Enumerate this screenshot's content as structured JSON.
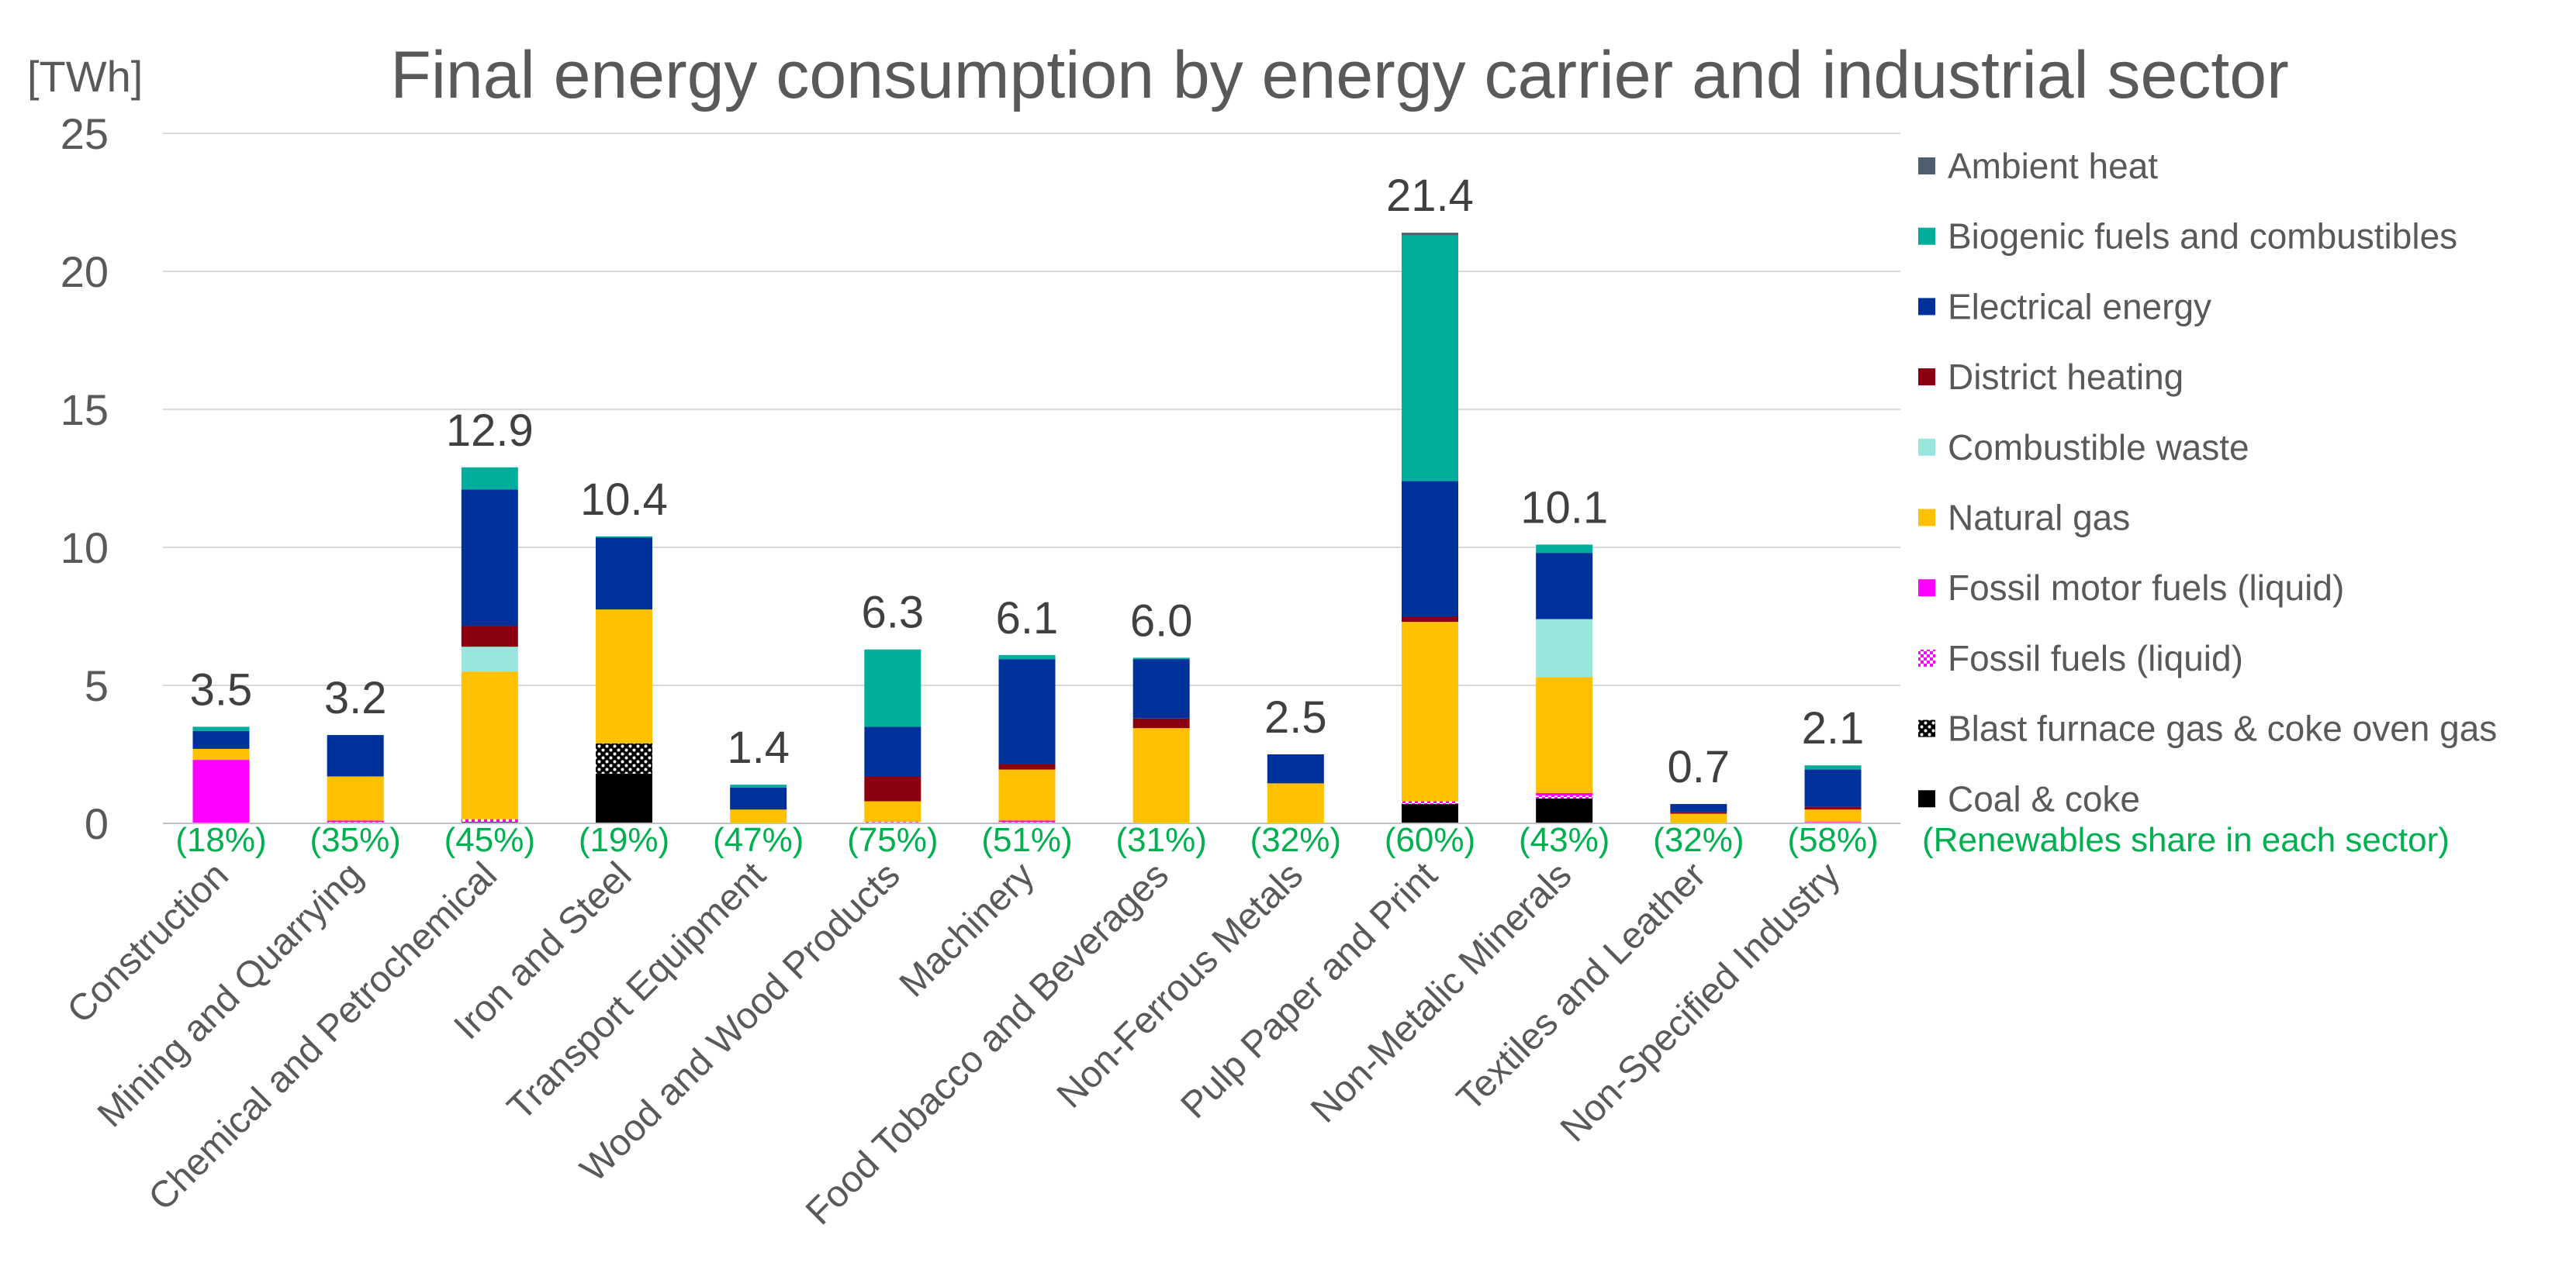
{
  "chart_data": {
    "type": "bar",
    "stacked": true,
    "title": "Final energy consumption by energy carrier and industrial sector",
    "ylabel": "[TWh]",
    "xlabel": "",
    "ylim": [
      0,
      25
    ],
    "yticks": [
      0,
      5,
      10,
      15,
      20,
      25
    ],
    "grid": true,
    "legend_position": "right",
    "categories": [
      "Construction",
      "Mining and Quarrying",
      "Chemical and Petrochemical",
      "Iron and Steel",
      "Transport Equipment",
      "Wood and Wood Products",
      "Machinery",
      "Food Tobacco and Beverages",
      "Non-Ferrous Metals",
      "Pulp Paper and Print",
      "Non-Metalic Minerals",
      "Textiles and Leather",
      "Non-Specified Industry"
    ],
    "totals": [
      "3.5",
      "3.2",
      "12.9",
      "10.4",
      "1.4",
      "6.3",
      "6.1",
      "6.0",
      "2.5",
      "21.4",
      "10.1",
      "0.7",
      "2.1"
    ],
    "renewables_share": [
      "(18%)",
      "(35%)",
      "(45%)",
      "(19%)",
      "(47%)",
      "(75%)",
      "(51%)",
      "(31%)",
      "(32%)",
      "(60%)",
      "(43%)",
      "(32%)",
      "(58%)"
    ],
    "renewables_share_label": "(Renewables share in each sector)",
    "series": [
      {
        "name": "Coal & coke",
        "color": "#000000",
        "pattern": "solid",
        "values": [
          0.0,
          0.0,
          0.05,
          1.8,
          0.0,
          0.0,
          0.0,
          0.0,
          0.0,
          0.7,
          0.9,
          0.0,
          0.0
        ]
      },
      {
        "name": "Blast furnace gas & coke oven gas",
        "color": "#000000",
        "pattern": "dots",
        "values": [
          0.0,
          0.0,
          0.0,
          1.1,
          0.0,
          0.0,
          0.0,
          0.0,
          0.0,
          0.0,
          0.0,
          0.0,
          0.0
        ]
      },
      {
        "name": "Fossil fuels (liquid)",
        "color": "#ff00ff",
        "pattern": "checker",
        "values": [
          0.0,
          0.05,
          0.1,
          0.0,
          0.0,
          0.05,
          0.05,
          0.0,
          0.0,
          0.1,
          0.1,
          0.0,
          0.0
        ]
      },
      {
        "name": "Fossil motor fuels (liquid)",
        "color": "#ff00ff",
        "pattern": "solid",
        "values": [
          2.3,
          0.05,
          0.0,
          0.0,
          0.0,
          0.0,
          0.05,
          0.0,
          0.0,
          0.0,
          0.1,
          0.0,
          0.05
        ]
      },
      {
        "name": "Natural gas",
        "color": "#ffc000",
        "pattern": "solid",
        "values": [
          0.4,
          1.6,
          5.35,
          4.85,
          0.5,
          0.75,
          1.85,
          3.45,
          1.45,
          6.5,
          4.2,
          0.35,
          0.45
        ]
      },
      {
        "name": "Combustible waste",
        "color": "#99e6dc",
        "pattern": "solid",
        "values": [
          0.0,
          0.0,
          0.9,
          0.0,
          0.0,
          0.0,
          0.0,
          0.0,
          0.0,
          0.0,
          2.1,
          0.0,
          0.0
        ]
      },
      {
        "name": "District heating",
        "color": "#8b0010",
        "pattern": "solid",
        "values": [
          0.0,
          0.0,
          0.75,
          0.0,
          0.0,
          0.9,
          0.2,
          0.35,
          0.0,
          0.2,
          0.0,
          0.05,
          0.1
        ]
      },
      {
        "name": "Electrical energy",
        "color": "#00309a",
        "pattern": "solid",
        "values": [
          0.65,
          1.5,
          4.95,
          2.6,
          0.8,
          1.8,
          3.8,
          2.15,
          1.05,
          4.9,
          2.4,
          0.3,
          1.35
        ]
      },
      {
        "name": "Biogenic fuels and combustibles",
        "color": "#00ae9c",
        "pattern": "solid",
        "values": [
          0.15,
          0.0,
          0.8,
          0.05,
          0.1,
          2.8,
          0.15,
          0.05,
          0.0,
          8.9,
          0.3,
          0.0,
          0.15
        ]
      },
      {
        "name": "Ambient heat",
        "color": "#505f6f",
        "pattern": "solid",
        "values": [
          0.0,
          0.0,
          0.0,
          0.0,
          0.0,
          0.0,
          0.0,
          0.0,
          0.0,
          0.1,
          0.0,
          0.0,
          0.0
        ]
      }
    ],
    "legend_order": [
      "Ambient heat",
      "Biogenic fuels and combustibles",
      "Electrical energy",
      "District heating",
      "Combustible waste",
      "Natural gas",
      "Fossil motor fuels (liquid)",
      "Fossil fuels (liquid)",
      "Blast furnace gas & coke oven gas",
      "Coal & coke"
    ]
  }
}
